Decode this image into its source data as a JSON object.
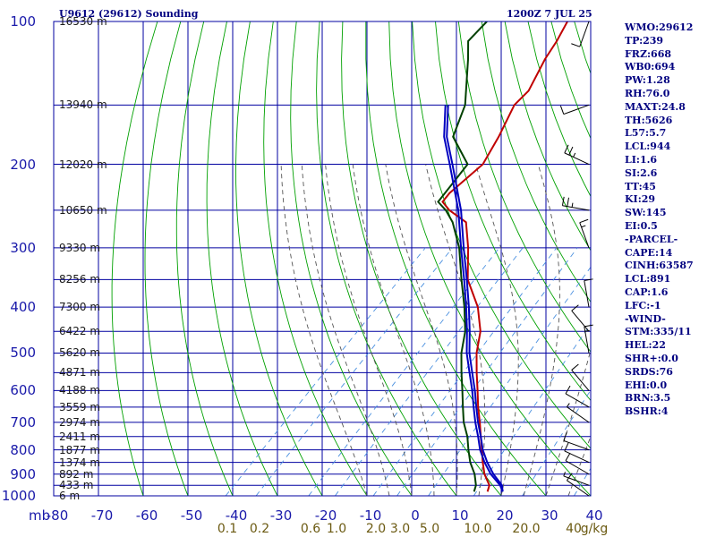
{
  "header": {
    "station_title": "U9612 (29612) Sounding",
    "valid_time": "1200Z  7 JUL 25"
  },
  "indices": [
    "WMO:29612",
    "TP:239",
    "FRZ:668",
    "WB0:694",
    "PW:1.28",
    "RH:76.0",
    "MAXT:24.8",
    "TH:5626",
    "L57:5.7",
    "LCL:944",
    "LI:1.6",
    "SI:2.6",
    "TT:45",
    "KI:29",
    "SW:145",
    "EI:0.5",
    "-PARCEL-",
    "CAPE:14",
    "CINH:63587",
    "LCL:891",
    "CAP:1.6",
    "LFC:-1",
    "-WIND-",
    "STM:335/11",
    "HEL:22",
    "SHR+:0.0",
    "SRDS:76",
    "EHI:0.0",
    "BRN:3.5",
    "BSHR:4"
  ],
  "colors": {
    "grid": "#0000a0",
    "dry_adiabat": "#00a000",
    "moist_adiabat": "#555555",
    "mixing_ratio": "#4a90e0",
    "temperature": "#c00000",
    "dewpoint": "#004000",
    "parcel": "#0000c0",
    "wind_barb": "#000000"
  },
  "chart_data": {
    "type": "line",
    "title": "U9612 (29612) Sounding",
    "pressure_unit": "mb",
    "x_axis": {
      "label": "",
      "ticks": [
        -80,
        -70,
        -60,
        -50,
        -40,
        -30,
        -20,
        -10,
        0,
        10,
        20,
        30,
        40
      ],
      "ylim_temp": [
        -80,
        40
      ]
    },
    "y_axis": {
      "scale": "log",
      "range_mb": [
        1000,
        100
      ],
      "ticks": [
        100,
        200,
        300,
        400,
        500,
        600,
        700,
        800,
        900,
        1000
      ]
    },
    "height_labels": [
      {
        "p": 100,
        "label": "16530 m"
      },
      {
        "p": 150,
        "label": "13940 m"
      },
      {
        "p": 200,
        "label": "12020 m"
      },
      {
        "p": 250,
        "label": "10650 m"
      },
      {
        "p": 300,
        "label": "9330 m"
      },
      {
        "p": 350,
        "label": "8256 m"
      },
      {
        "p": 400,
        "label": "7300 m"
      },
      {
        "p": 450,
        "label": "6422 m"
      },
      {
        "p": 500,
        "label": "5620 m"
      },
      {
        "p": 550,
        "label": "4871 m"
      },
      {
        "p": 600,
        "label": "4188 m"
      },
      {
        "p": 650,
        "label": "3559 m"
      },
      {
        "p": 700,
        "label": "2974 m"
      },
      {
        "p": 750,
        "label": "2411 m"
      },
      {
        "p": 800,
        "label": "1877 m"
      },
      {
        "p": 850,
        "label": "1374 m"
      },
      {
        "p": 900,
        "label": "892 m"
      },
      {
        "p": 950,
        "label": "433 m"
      },
      {
        "p": 1000,
        "label": "6 m"
      }
    ],
    "mixing_ratio_labels": [
      "0.1",
      "0.2",
      "0.6",
      "1.0",
      "2.0",
      "3.0",
      "5.0",
      "10.0",
      "20.0",
      "40",
      "g/kg"
    ],
    "mixing_ratios": [
      0.1,
      0.2,
      0.6,
      1.0,
      2.0,
      3.0,
      5.0,
      10.0,
      20.0,
      40.0
    ],
    "dry_adiabats_theta_c": [
      -60,
      -50,
      -40,
      -30,
      -20,
      -10,
      0,
      10,
      20,
      30,
      40,
      50,
      60,
      70,
      80,
      90,
      100,
      110,
      120,
      130,
      140,
      150,
      160,
      170,
      180,
      190,
      200,
      210
    ],
    "moist_adiabats_c": [
      -10,
      -5,
      0,
      5,
      10,
      15,
      20,
      25,
      30,
      35
    ],
    "series": [
      {
        "key": "temperature",
        "points": [
          [
            980,
            16.0
          ],
          [
            950,
            15.0
          ],
          [
            900,
            11.4
          ],
          [
            850,
            8.4
          ],
          [
            800,
            5.4
          ],
          [
            750,
            2.2
          ],
          [
            700,
            -1.2
          ],
          [
            650,
            -5.0
          ],
          [
            600,
            -8.8
          ],
          [
            550,
            -13.0
          ],
          [
            500,
            -17.4
          ],
          [
            450,
            -21.4
          ],
          [
            400,
            -27.4
          ],
          [
            350,
            -35.8
          ],
          [
            300,
            -42.8
          ],
          [
            265,
            -49.0
          ],
          [
            250,
            -55.4
          ],
          [
            240,
            -58.8
          ],
          [
            230,
            -59.2
          ],
          [
            200,
            -58.2
          ],
          [
            175,
            -60.8
          ],
          [
            150,
            -64.4
          ],
          [
            140,
            -64.4
          ],
          [
            120,
            -67.8
          ],
          [
            110,
            -69.2
          ],
          [
            100,
            -71.2
          ]
        ]
      },
      {
        "key": "dewpoint",
        "points": [
          [
            980,
            13.0
          ],
          [
            950,
            12.0
          ],
          [
            900,
            9.2
          ],
          [
            850,
            5.6
          ],
          [
            800,
            2.4
          ],
          [
            750,
            -0.8
          ],
          [
            700,
            -4.8
          ],
          [
            650,
            -8.4
          ],
          [
            600,
            -12.2
          ],
          [
            550,
            -16.4
          ],
          [
            500,
            -20.8
          ],
          [
            450,
            -24.8
          ],
          [
            400,
            -30.4
          ],
          [
            350,
            -37.2
          ],
          [
            300,
            -44.8
          ],
          [
            265,
            -52.0
          ],
          [
            250,
            -56.2
          ],
          [
            240,
            -59.8
          ],
          [
            200,
            -61.6
          ],
          [
            175,
            -71.0
          ],
          [
            150,
            -75.4
          ],
          [
            120,
            -85.0
          ],
          [
            110,
            -89.0
          ],
          [
            100,
            -89.2
          ]
        ]
      },
      {
        "key": "parcel",
        "points": [
          [
            980,
            19.4
          ],
          [
            950,
            17.4
          ],
          [
            900,
            12.8
          ],
          [
            850,
            8.8
          ],
          [
            800,
            5.0
          ],
          [
            750,
            1.6
          ],
          [
            700,
            -2.2
          ],
          [
            650,
            -6.0
          ],
          [
            600,
            -10.0
          ],
          [
            550,
            -14.6
          ],
          [
            500,
            -19.6
          ],
          [
            450,
            -24.4
          ],
          [
            400,
            -30.0
          ],
          [
            350,
            -36.6
          ],
          [
            300,
            -44.4
          ],
          [
            250,
            -53.4
          ],
          [
            200,
            -65.6
          ],
          [
            175,
            -73.0
          ],
          [
            150,
            -79.8
          ]
        ]
      },
      {
        "key": "parcel2",
        "points": [
          [
            980,
            19.4
          ],
          [
            950,
            17.8
          ],
          [
            900,
            13.4
          ],
          [
            850,
            9.4
          ],
          [
            800,
            5.6
          ],
          [
            750,
            2.2
          ],
          [
            700,
            -1.6
          ],
          [
            650,
            -5.4
          ],
          [
            600,
            -9.4
          ],
          [
            550,
            -14.0
          ],
          [
            500,
            -19.0
          ],
          [
            450,
            -23.8
          ],
          [
            400,
            -29.4
          ],
          [
            350,
            -36.0
          ],
          [
            300,
            -43.8
          ],
          [
            250,
            -52.8
          ],
          [
            200,
            -65.0
          ],
          [
            175,
            -72.4
          ],
          [
            150,
            -79.2
          ]
        ]
      }
    ],
    "wind_barbs": [
      {
        "p": 100,
        "dir": 200,
        "spd": 10
      },
      {
        "p": 150,
        "dir": 250,
        "spd": 10
      },
      {
        "p": 200,
        "dir": 295,
        "spd": 25
      },
      {
        "p": 250,
        "dir": 280,
        "spd": 25
      },
      {
        "p": 300,
        "dir": 340,
        "spd": 15
      },
      {
        "p": 400,
        "dir": 350,
        "spd": 10
      },
      {
        "p": 450,
        "dir": 320,
        "spd": 10
      },
      {
        "p": 500,
        "dir": 350,
        "spd": 15
      },
      {
        "p": 600,
        "dir": 320,
        "spd": 10
      },
      {
        "p": 650,
        "dir": 300,
        "spd": 10
      },
      {
        "p": 700,
        "dir": 305,
        "spd": 5
      },
      {
        "p": 800,
        "dir": 290,
        "spd": 10
      },
      {
        "p": 850,
        "dir": 295,
        "spd": 10
      },
      {
        "p": 900,
        "dir": 300,
        "spd": 10
      },
      {
        "p": 950,
        "dir": 290,
        "spd": 5
      },
      {
        "p": 1000,
        "dir": 305,
        "spd": 10
      }
    ]
  }
}
